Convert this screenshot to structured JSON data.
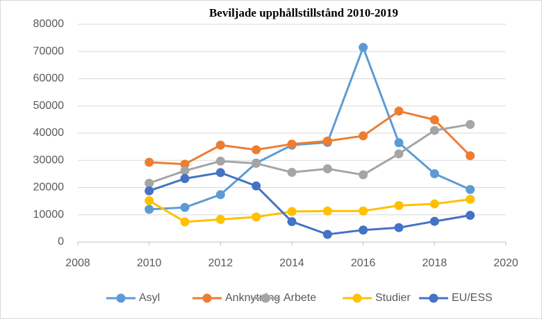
{
  "chart_data": {
    "type": "line",
    "title": "Beviljade upphållstillstånd 2010-2019",
    "x": [
      2010,
      2011,
      2012,
      2013,
      2014,
      2015,
      2016,
      2017,
      2018,
      2019
    ],
    "xlim": [
      2008,
      2020
    ],
    "xticks": [
      2008,
      2010,
      2012,
      2014,
      2016,
      2018,
      2020
    ],
    "ylim": [
      0,
      80000
    ],
    "yticks": [
      0,
      10000,
      20000,
      30000,
      40000,
      50000,
      60000,
      70000,
      80000
    ],
    "grid": true,
    "legend": "bottom",
    "series": [
      {
        "name": "Asyl",
        "color": "#5b9bd5",
        "values": [
          12000,
          12700,
          17400,
          29000,
          35600,
          36600,
          71500,
          36500,
          25100,
          19300
        ]
      },
      {
        "name": "Anknytning",
        "color": "#ed7d31",
        "values": [
          29300,
          28600,
          35600,
          33900,
          36000,
          37100,
          39000,
          48100,
          44900,
          31700
        ]
      },
      {
        "name": "Arbete",
        "color": "#a5a5a5",
        "values": [
          21600,
          26200,
          29700,
          28900,
          25600,
          26900,
          24700,
          32400,
          41000,
          43200
        ]
      },
      {
        "name": "Studier",
        "color": "#ffc000",
        "values": [
          15200,
          7400,
          8300,
          9200,
          11200,
          11400,
          11400,
          13400,
          14000,
          15700
        ]
      },
      {
        "name": "EU/ESS",
        "color": "#4472c4",
        "values": [
          18800,
          23300,
          25500,
          20600,
          7500,
          2800,
          4400,
          5300,
          7600,
          9800
        ]
      }
    ]
  }
}
